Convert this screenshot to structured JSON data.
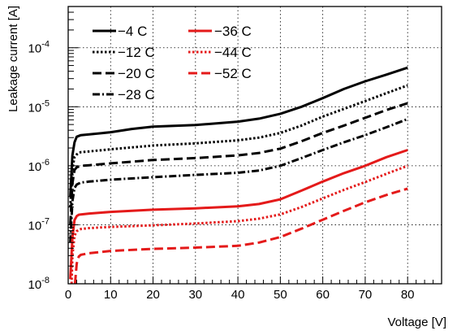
{
  "chart_data": {
    "type": "line",
    "title": "",
    "xlabel": "Voltage [V]",
    "ylabel": "Leakage current [A]",
    "xlim": [
      0,
      88
    ],
    "ylim": [
      1e-08,
      0.0005
    ],
    "yscale": "log",
    "grid": true,
    "legend_location": "top-left",
    "x_ticks": [
      0,
      10,
      20,
      30,
      40,
      50,
      60,
      70,
      80
    ],
    "x_tick_labels": [
      "0",
      "10",
      "20",
      "30",
      "40",
      "50",
      "60",
      "70",
      "80"
    ],
    "y_ticks": [
      {
        "value": 1e-08,
        "base": "10",
        "exp": "-8"
      },
      {
        "value": 1e-07,
        "base": "10",
        "exp": "-7"
      },
      {
        "value": 1e-06,
        "base": "10",
        "exp": "-6"
      },
      {
        "value": 1e-05,
        "base": "10",
        "exp": "-5"
      },
      {
        "value": 0.0001,
        "base": "10",
        "exp": "-4"
      }
    ],
    "series": [
      {
        "name": "−4 C",
        "color": "#000000",
        "dash": "solid",
        "x": [
          0.5,
          1,
          1.5,
          2,
          2.5,
          3,
          5,
          10,
          15,
          20,
          30,
          40,
          45,
          50,
          55,
          60,
          65,
          70,
          75,
          80
        ],
        "y": [
          3e-07,
          1.5e-06,
          2.5e-06,
          3.1e-06,
          3.2e-06,
          3.3e-06,
          3.4e-06,
          3.7e-06,
          4.2e-06,
          4.6e-06,
          4.9e-06,
          5.6e-06,
          6.3e-06,
          7.6e-06,
          1e-05,
          1.4e-05,
          2e-05,
          2.7e-05,
          3.5e-05,
          4.6e-05
        ]
      },
      {
        "name": "−12 C",
        "color": "#000000",
        "dash": "dot",
        "x": [
          0.5,
          1,
          1.5,
          2,
          2.5,
          3,
          5,
          10,
          20,
          30,
          40,
          45,
          50,
          55,
          60,
          65,
          70,
          75,
          80
        ],
        "y": [
          2e-07,
          9e-07,
          1.4e-06,
          1.55e-06,
          1.65e-06,
          1.7e-06,
          1.75e-06,
          1.9e-06,
          2.2e-06,
          2.4e-06,
          2.7e-06,
          3e-06,
          3.6e-06,
          4.8e-06,
          6.8e-06,
          9.2e-06,
          1.25e-05,
          1.7e-05,
          2.3e-05
        ]
      },
      {
        "name": "−20 C",
        "color": "#000000",
        "dash": "dash",
        "x": [
          0.5,
          1,
          1.5,
          2,
          2.5,
          3,
          5,
          10,
          20,
          30,
          40,
          45,
          50,
          55,
          60,
          65,
          70,
          75,
          80
        ],
        "y": [
          1e-07,
          5e-07,
          8.5e-07,
          9.4e-07,
          9.7e-07,
          1e-06,
          1.02e-06,
          1.1e-06,
          1.25e-06,
          1.35e-06,
          1.5e-06,
          1.65e-06,
          1.95e-06,
          2.6e-06,
          3.6e-06,
          4.8e-06,
          6.5e-06,
          8.8e-06,
          1.15e-05
        ]
      },
      {
        "name": "−28 C",
        "color": "#000000",
        "dash": "dashdot",
        "x": [
          0.5,
          1,
          1.5,
          2,
          2.5,
          3,
          5,
          10,
          20,
          30,
          40,
          45,
          50,
          55,
          60,
          65,
          70,
          75,
          80
        ],
        "y": [
          5e-08,
          2.5e-07,
          4.2e-07,
          4.8e-07,
          5e-07,
          5.2e-07,
          5.4e-07,
          5.8e-07,
          6.4e-07,
          7e-07,
          7.6e-07,
          8.3e-07,
          1e-06,
          1.35e-06,
          1.85e-06,
          2.5e-06,
          3.3e-06,
          4.5e-06,
          6.2e-06
        ]
      },
      {
        "name": "−36 C",
        "color": "#e41a1a",
        "dash": "solid",
        "x": [
          0.5,
          1,
          1.5,
          2,
          2.5,
          3,
          5,
          10,
          20,
          30,
          40,
          45,
          50,
          55,
          60,
          65,
          70,
          75,
          80
        ],
        "y": [
          1.2e-08,
          6e-08,
          1.2e-07,
          1.4e-07,
          1.48e-07,
          1.5e-07,
          1.55e-07,
          1.65e-07,
          1.8e-07,
          1.9e-07,
          2.05e-07,
          2.25e-07,
          2.7e-07,
          3.8e-07,
          5.4e-07,
          7.5e-07,
          1e-06,
          1.4e-06,
          1.85e-06
        ]
      },
      {
        "name": "−44 C",
        "color": "#e41a1a",
        "dash": "dot",
        "x": [
          0.8,
          1,
          1.5,
          2,
          2.5,
          3,
          5,
          10,
          20,
          30,
          40,
          45,
          50,
          55,
          60,
          65,
          70,
          75,
          80
        ],
        "y": [
          1e-08,
          3e-08,
          6.5e-08,
          7.8e-08,
          8.2e-08,
          8.5e-08,
          8.8e-08,
          9.2e-08,
          9.8e-08,
          1.05e-07,
          1.15e-07,
          1.27e-07,
          1.5e-07,
          2e-07,
          2.8e-07,
          3.9e-07,
          5.3e-07,
          7.3e-07,
          1e-06
        ]
      },
      {
        "name": "−52 C",
        "color": "#e41a1a",
        "dash": "dash",
        "x": [
          1.6,
          2,
          2.5,
          3,
          5,
          10,
          20,
          30,
          40,
          45,
          50,
          55,
          60,
          65,
          70,
          75,
          80
        ],
        "y": [
          1e-08,
          2.2e-08,
          2.9e-08,
          3.1e-08,
          3.3e-08,
          3.6e-08,
          3.9e-08,
          4.1e-08,
          4.4e-08,
          5e-08,
          6.2e-08,
          8.6e-08,
          1.22e-07,
          1.72e-07,
          2.4e-07,
          3.2e-07,
          4.1e-07
        ]
      }
    ]
  }
}
